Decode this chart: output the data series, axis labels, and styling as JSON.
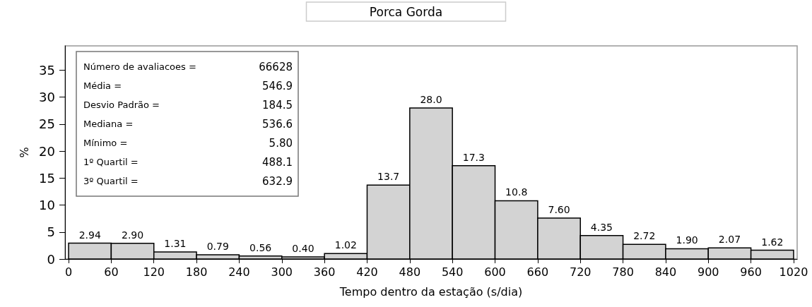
{
  "chart_data": {
    "type": "histogram",
    "title": "Porca Gorda",
    "xlabel": "Tempo dentro da estação (s/dia)",
    "ylabel": "%",
    "bins": [
      0,
      60,
      120,
      180,
      240,
      300,
      360,
      420,
      480,
      540,
      600,
      660,
      720,
      780,
      840,
      900,
      960,
      1020
    ],
    "values": [
      2.94,
      2.9,
      1.31,
      0.79,
      0.56,
      0.4,
      1.02,
      13.7,
      28.0,
      17.3,
      10.8,
      7.6,
      4.35,
      2.72,
      1.9,
      2.07,
      1.62
    ],
    "value_labels": [
      "2.94",
      "2.90",
      "1.31",
      "0.79",
      "0.56",
      "0.40",
      "1.02",
      "13.7",
      "28.0",
      "17.3",
      "10.8",
      "7.60",
      "4.35",
      "2.72",
      "1.90",
      "2.07",
      "1.62"
    ],
    "color": "#d3d3d3",
    "xlim": [
      -5,
      1025
    ],
    "xticks": [
      0,
      60,
      120,
      180,
      240,
      300,
      360,
      420,
      480,
      540,
      600,
      660,
      720,
      780,
      840,
      900,
      960,
      1020
    ],
    "ylim": [
      0,
      39.5
    ],
    "yticks": [
      0,
      5,
      10,
      15,
      20,
      25,
      30,
      35
    ],
    "grid": false,
    "annotations": [
      "Número de avaliacoes = 66628",
      "Média = 546.9",
      "Desvio Padrão = 184.5",
      "Mediana = 536.6",
      "Mínimo = 5.80",
      "1º Quartil = 488.1",
      "3º Quartil = 632.9"
    ]
  }
}
